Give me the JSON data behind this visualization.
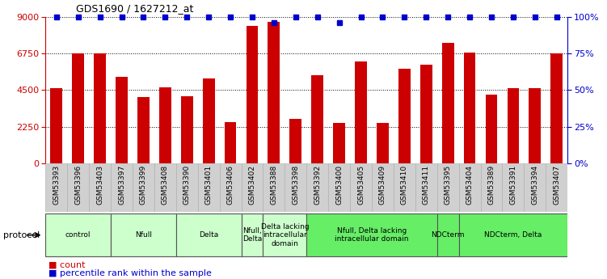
{
  "title": "GDS1690 / 1627212_at",
  "samples": [
    "GSM53393",
    "GSM53396",
    "GSM53403",
    "GSM53397",
    "GSM53399",
    "GSM53408",
    "GSM53390",
    "GSM53401",
    "GSM53406",
    "GSM53402",
    "GSM53388",
    "GSM53398",
    "GSM53392",
    "GSM53400",
    "GSM53405",
    "GSM53409",
    "GSM53410",
    "GSM53411",
    "GSM53395",
    "GSM53404",
    "GSM53389",
    "GSM53391",
    "GSM53394",
    "GSM53407"
  ],
  "counts": [
    4600,
    6750,
    6750,
    5300,
    4050,
    4650,
    4100,
    5200,
    2550,
    8450,
    8700,
    2700,
    5400,
    2500,
    6250,
    2500,
    5800,
    6050,
    7400,
    6800,
    4200,
    4600,
    4600,
    6750
  ],
  "percentile": [
    100,
    100,
    100,
    100,
    100,
    100,
    100,
    100,
    100,
    100,
    96,
    100,
    100,
    96,
    100,
    100,
    100,
    100,
    100,
    100,
    100,
    100,
    100,
    100
  ],
  "bar_color": "#cc0000",
  "dot_color": "#0000cc",
  "ylim_left": [
    0,
    9000
  ],
  "ylim_right": [
    0,
    100
  ],
  "yticks_left": [
    0,
    2250,
    4500,
    6750,
    9000
  ],
  "yticks_right": [
    0,
    25,
    50,
    75,
    100
  ],
  "groups": [
    {
      "label": "control",
      "start": 0,
      "end": 3,
      "color": "#ccffcc"
    },
    {
      "label": "Nfull",
      "start": 3,
      "end": 6,
      "color": "#ccffcc"
    },
    {
      "label": "Delta",
      "start": 6,
      "end": 9,
      "color": "#ccffcc"
    },
    {
      "label": "Nfull,\nDelta",
      "start": 9,
      "end": 10,
      "color": "#ccffcc"
    },
    {
      "label": "Delta lacking\nintracellular\ndomain",
      "start": 10,
      "end": 12,
      "color": "#ccffcc"
    },
    {
      "label": "Nfull, Delta lacking\nintracellular domain",
      "start": 12,
      "end": 18,
      "color": "#66ee66"
    },
    {
      "label": "NDCterm",
      "start": 18,
      "end": 19,
      "color": "#66ee66"
    },
    {
      "label": "NDCterm, Delta",
      "start": 19,
      "end": 24,
      "color": "#66ee66"
    }
  ],
  "protocol_label": "protocol",
  "legend_count_label": "count",
  "legend_pct_label": "percentile rank within the sample",
  "bg_color": "#ffffff",
  "left_color": "#cc0000",
  "right_color": "#0000cc",
  "tick_bg": "#d0d0d0"
}
